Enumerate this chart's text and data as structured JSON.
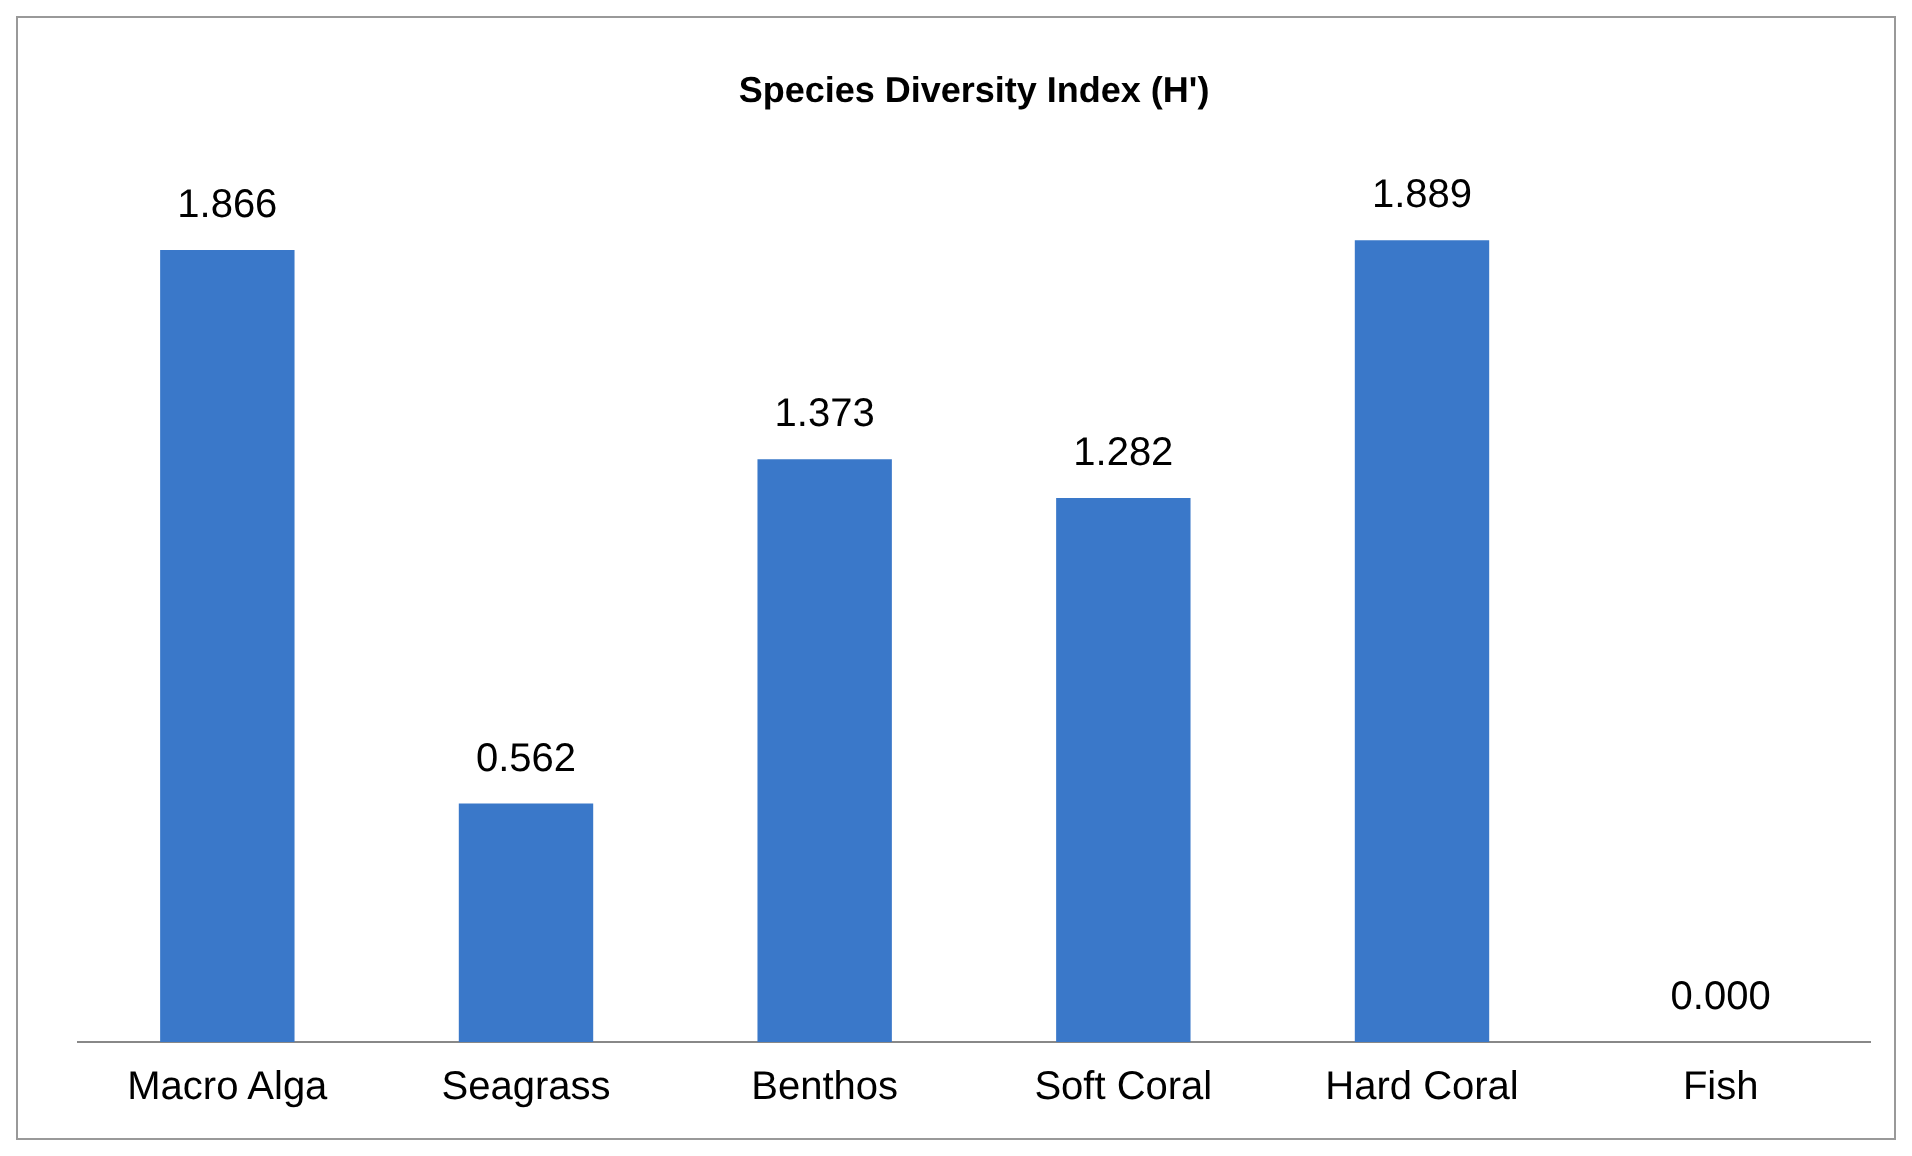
{
  "chart_data": {
    "type": "bar",
    "title": "Species Diversity Index (H')",
    "categories": [
      "Macro Alga",
      "Seagrass",
      "Benthos",
      "Soft Coral",
      "Hard Coral",
      "Fish"
    ],
    "values": [
      1.866,
      0.562,
      1.373,
      1.282,
      1.889,
      0
    ],
    "value_labels": [
      "1.866",
      "0.562",
      "1.373",
      "1.282",
      "1.889",
      "0.000"
    ],
    "color": "#3a78c9",
    "grid": false,
    "legend": false,
    "tick_labels": "x"
  }
}
